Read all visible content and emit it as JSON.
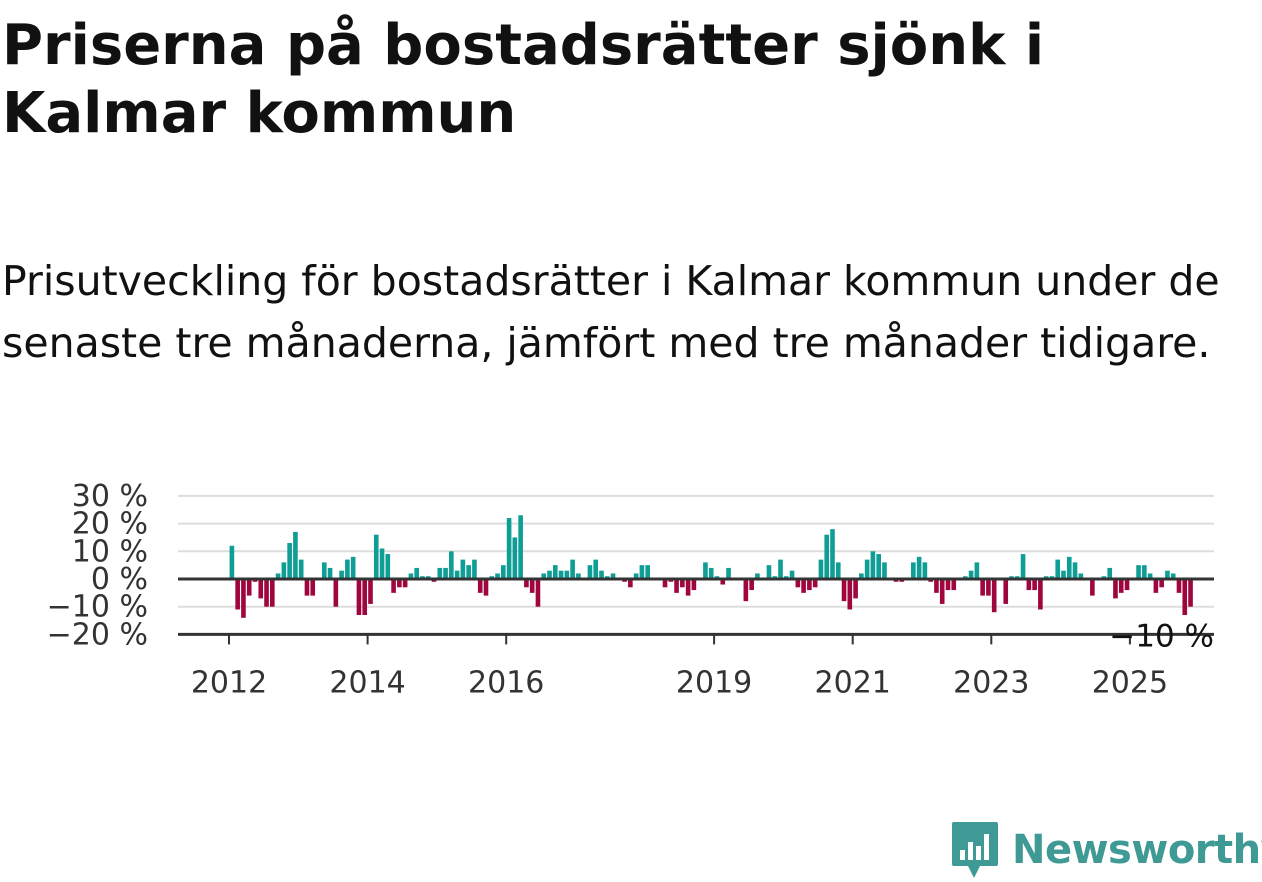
{
  "title": "Priserna på bostadsrätter sjönk i Kalmar kommun",
  "subtitle": "Prisutveckling för bostadsrätter i Kalmar kommun under de senaste tre månaderna, jämfört med tre månader tidigare.",
  "brand": {
    "name": "Newsworthy",
    "color": "#3f9a95",
    "icon": "newsworthy-logo-icon"
  },
  "colors": {
    "positive": "#0e9e96",
    "negative": "#a0063e",
    "axis": "#333333",
    "grid": "#dddddd"
  },
  "chart_data": {
    "type": "bar",
    "title": "",
    "xlabel": "",
    "ylabel": "",
    "ylim": [
      -20,
      30
    ],
    "y_ticks": [
      {
        "value": 30,
        "label": "30 %"
      },
      {
        "value": 20,
        "label": "20 %"
      },
      {
        "value": 10,
        "label": "10 %"
      },
      {
        "value": 0,
        "label": "0 %"
      },
      {
        "value": -10,
        "label": "−10 %"
      },
      {
        "value": -20,
        "label": "−20 %"
      }
    ],
    "x_ticks": [
      {
        "value": 2012.0,
        "label": "2012"
      },
      {
        "value": 2014.0,
        "label": "2014"
      },
      {
        "value": 2016.0,
        "label": "2016"
      },
      {
        "value": 2019.0,
        "label": "2019"
      },
      {
        "value": 2021.0,
        "label": "2021"
      },
      {
        "value": 2023.0,
        "label": "2023"
      },
      {
        "value": 2025.0,
        "label": "2025"
      }
    ],
    "grid": true,
    "series_start": "2012-01",
    "frequency": "monthly",
    "values": [
      12,
      -11,
      -14,
      -6,
      -1,
      -7,
      -10,
      -10,
      2,
      6,
      13,
      17,
      7,
      -6,
      -6,
      0,
      6,
      4,
      -10,
      3,
      7,
      8,
      -13,
      -13,
      -9,
      16,
      11,
      9,
      -5,
      -3,
      -3,
      2,
      4,
      1,
      1,
      -1,
      4,
      4,
      10,
      3,
      7,
      5,
      7,
      -5,
      -6,
      1,
      2,
      5,
      22,
      15,
      23,
      -3,
      -5,
      -10,
      2,
      3,
      5,
      3,
      3,
      7,
      2,
      0,
      5,
      7,
      3,
      1,
      2,
      0,
      -1,
      -3,
      2,
      5,
      5,
      0,
      0,
      -3,
      -1,
      -5,
      -3,
      -6,
      -4,
      0,
      6,
      4,
      1,
      -2,
      4,
      0,
      0,
      -8,
      -4,
      2,
      0,
      5,
      1,
      7,
      1,
      3,
      -3,
      -5,
      -4,
      -3,
      7,
      16,
      18,
      6,
      -8,
      -11,
      -7,
      2,
      7,
      10,
      9,
      6,
      0,
      -1,
      -1,
      0,
      6,
      8,
      6,
      -1,
      -5,
      -9,
      -4,
      -4,
      0,
      1,
      3,
      6,
      -6,
      -6,
      -12,
      0,
      -9,
      1,
      1,
      9,
      -4,
      -4,
      -11,
      1,
      1,
      7,
      3,
      8,
      6,
      2,
      0,
      -6,
      0,
      1,
      4,
      -7,
      -5,
      -4,
      0,
      5,
      5,
      2,
      -5,
      -3,
      3,
      2,
      -5,
      -13,
      -10
    ],
    "last_value_label": "−10 %"
  }
}
